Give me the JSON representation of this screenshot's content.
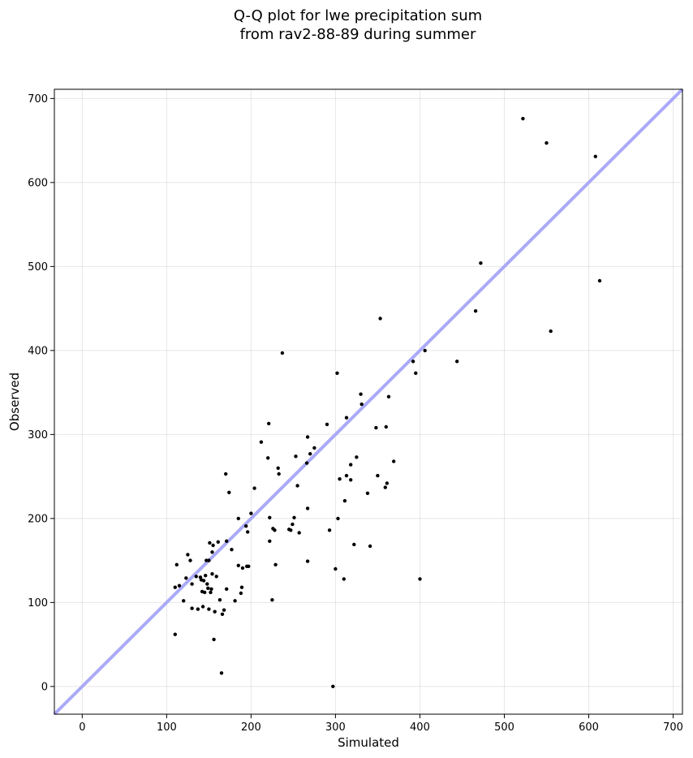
{
  "chart_data": {
    "type": "scatter",
    "title_lines": [
      "Q-Q plot for lwe precipitation sum",
      "from rav2-88-89 during summer"
    ],
    "xlabel": "Simulated",
    "ylabel": "Observed",
    "xlim": [
      -33,
      711
    ],
    "ylim": [
      -33,
      711
    ],
    "xticks": [
      0,
      100,
      200,
      300,
      400,
      500,
      600,
      700
    ],
    "yticks": [
      0,
      100,
      200,
      300,
      400,
      500,
      600,
      700
    ],
    "grid": true,
    "reference_line": "y = x",
    "colors": {
      "points": "#000000",
      "reference_line": "#aaaaf8",
      "grid": "#b0b0b0"
    },
    "points": [
      [
        110,
        62
      ],
      [
        110,
        118
      ],
      [
        112,
        145
      ],
      [
        115,
        120
      ],
      [
        120,
        102
      ],
      [
        123,
        129
      ],
      [
        125,
        157
      ],
      [
        128,
        150
      ],
      [
        130,
        122
      ],
      [
        130,
        93
      ],
      [
        135,
        131
      ],
      [
        137,
        92
      ],
      [
        140,
        130
      ],
      [
        141,
        127
      ],
      [
        142,
        113
      ],
      [
        143,
        95
      ],
      [
        144,
        126
      ],
      [
        145,
        112
      ],
      [
        146,
        132
      ],
      [
        147,
        150
      ],
      [
        148,
        122
      ],
      [
        149,
        117
      ],
      [
        150,
        92
      ],
      [
        150,
        150
      ],
      [
        151,
        171
      ],
      [
        152,
        112
      ],
      [
        153,
        116
      ],
      [
        154,
        160
      ],
      [
        154,
        134
      ],
      [
        155,
        168
      ],
      [
        156,
        56
      ],
      [
        157,
        89
      ],
      [
        159,
        131
      ],
      [
        161,
        172
      ],
      [
        163,
        103
      ],
      [
        165,
        16
      ],
      [
        166,
        86
      ],
      [
        168,
        91
      ],
      [
        170,
        253
      ],
      [
        171,
        173
      ],
      [
        171,
        116
      ],
      [
        174,
        231
      ],
      [
        177,
        163
      ],
      [
        181,
        102
      ],
      [
        185,
        144
      ],
      [
        185,
        200
      ],
      [
        188,
        111
      ],
      [
        189,
        118
      ],
      [
        190,
        141
      ],
      [
        194,
        191
      ],
      [
        195,
        143
      ],
      [
        196,
        184
      ],
      [
        197,
        143
      ],
      [
        200,
        206
      ],
      [
        204,
        236
      ],
      [
        212,
        291
      ],
      [
        220,
        272
      ],
      [
        221,
        313
      ],
      [
        222,
        173
      ],
      [
        222,
        201
      ],
      [
        225,
        103
      ],
      [
        226,
        188
      ],
      [
        228,
        186
      ],
      [
        229,
        145
      ],
      [
        232,
        260
      ],
      [
        233,
        253
      ],
      [
        237,
        397
      ],
      [
        245,
        187
      ],
      [
        247,
        186
      ],
      [
        249,
        193
      ],
      [
        251,
        201
      ],
      [
        253,
        274
      ],
      [
        255,
        239
      ],
      [
        257,
        183
      ],
      [
        266,
        266
      ],
      [
        267,
        297
      ],
      [
        267,
        212
      ],
      [
        267,
        149
      ],
      [
        270,
        277
      ],
      [
        275,
        284
      ],
      [
        290,
        312
      ],
      [
        293,
        186
      ],
      [
        297,
        0
      ],
      [
        300,
        140
      ],
      [
        302,
        373
      ],
      [
        303,
        200
      ],
      [
        305,
        247
      ],
      [
        310,
        128
      ],
      [
        311,
        221
      ],
      [
        313,
        320
      ],
      [
        313,
        251
      ],
      [
        318,
        246
      ],
      [
        318,
        264
      ],
      [
        322,
        169
      ],
      [
        325,
        273
      ],
      [
        330,
        348
      ],
      [
        331,
        336
      ],
      [
        338,
        230
      ],
      [
        341,
        167
      ],
      [
        348,
        308
      ],
      [
        350,
        251
      ],
      [
        353,
        438
      ],
      [
        359,
        237
      ],
      [
        360,
        309
      ],
      [
        361,
        242
      ],
      [
        363,
        345
      ],
      [
        369,
        268
      ],
      [
        392,
        387
      ],
      [
        395,
        373
      ],
      [
        400,
        128
      ],
      [
        406,
        400
      ],
      [
        444,
        387
      ],
      [
        466,
        447
      ],
      [
        472,
        504
      ],
      [
        522,
        676
      ],
      [
        550,
        647
      ],
      [
        555,
        423
      ],
      [
        608,
        631
      ],
      [
        613,
        483
      ]
    ]
  }
}
